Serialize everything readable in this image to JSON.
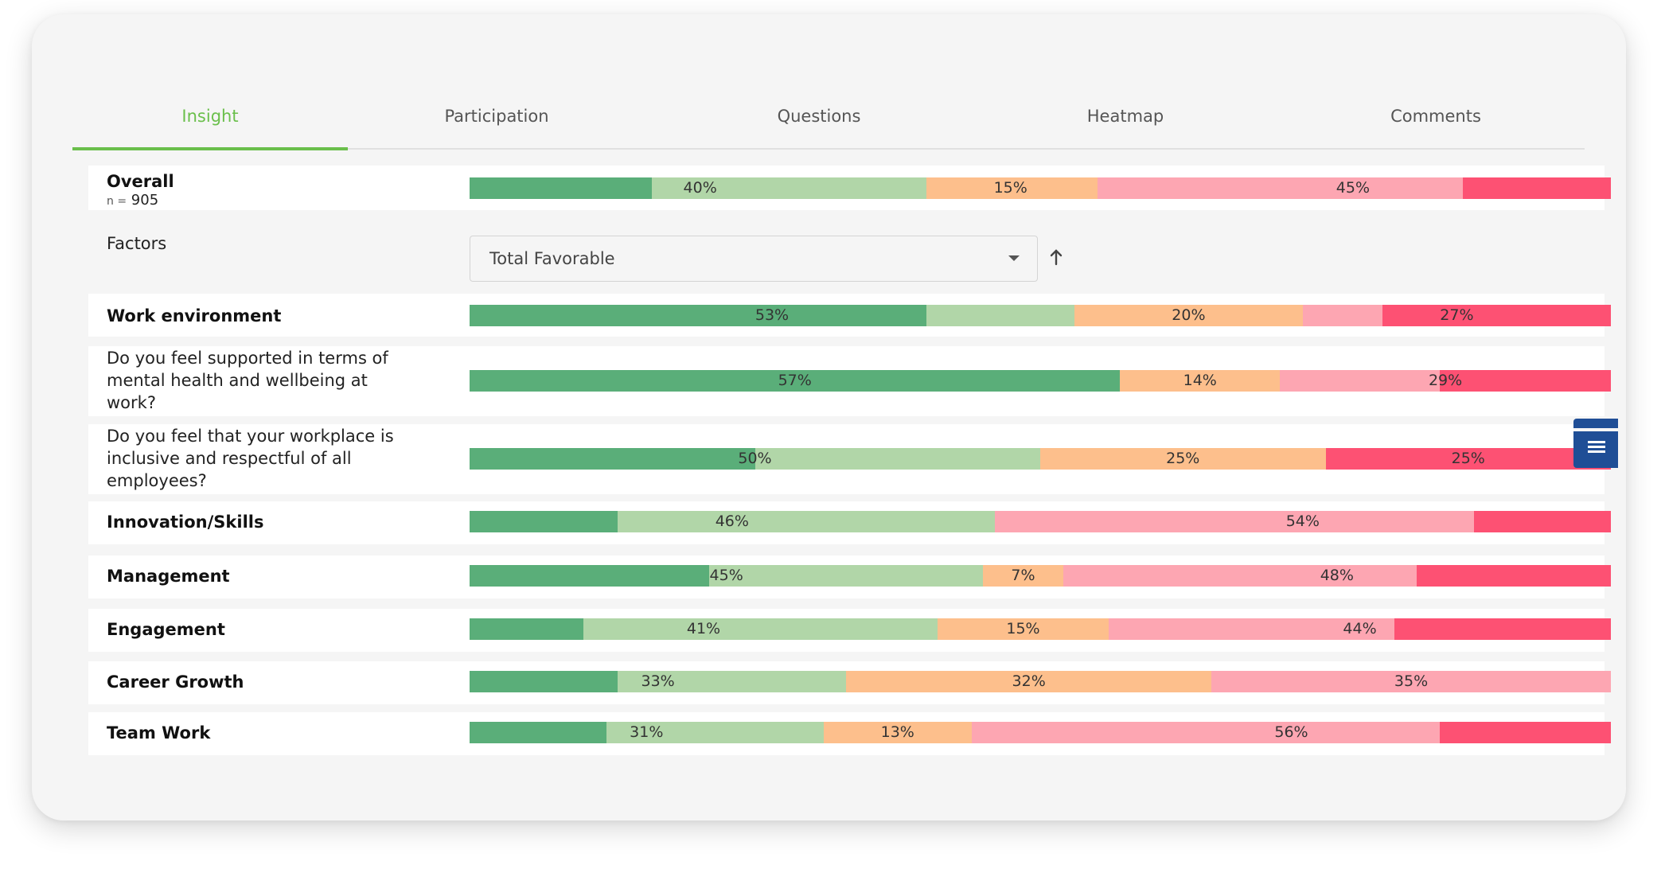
{
  "tabs": [
    {
      "label": "Insight",
      "active": true
    },
    {
      "label": "Participation",
      "active": false
    },
    {
      "label": "Questions",
      "active": false
    },
    {
      "label": "Heatmap",
      "active": false
    },
    {
      "label": "Comments",
      "active": false
    }
  ],
  "colors": {
    "strongly_favorable": "#5aae79",
    "favorable": "#b1d6a8",
    "neutral": "#fdbf8c",
    "unfavorable": "#fda6b2",
    "strongly_unfavorable": "#fd5173",
    "accent": "#6abf4b",
    "side_button": "#1f4e96"
  },
  "overall": {
    "title": "Overall",
    "n_prefix": "n =",
    "n_value": "905"
  },
  "factors": {
    "label": "Factors",
    "selected": "Total Favorable",
    "caret_icon": "chevron-down-icon",
    "sort_icon": "arrow-up-icon"
  },
  "rows": [
    {
      "id": "overall",
      "label": "Overall",
      "segments": [
        16,
        24,
        15,
        32,
        13
      ],
      "labels": [
        {
          "text": "40%",
          "at": 20.2
        },
        {
          "text": "15%",
          "at": 47.4
        },
        {
          "text": "45%",
          "at": 77.4
        }
      ]
    },
    {
      "id": "work-environment",
      "label": "Work environment",
      "bold": true,
      "segments": [
        40,
        13,
        20,
        7,
        20
      ],
      "labels": [
        {
          "text": "53%",
          "at": 26.5
        },
        {
          "text": "20%",
          "at": 63.0
        },
        {
          "text": "27%",
          "at": 86.5
        }
      ]
    },
    {
      "id": "q-mental-health",
      "label": "Do you feel supported in terms of mental health and wellbeing at work?",
      "segments": [
        57,
        0,
        14,
        14,
        15
      ],
      "labels": [
        {
          "text": "57%",
          "at": 28.5
        },
        {
          "text": "14%",
          "at": 64.0
        },
        {
          "text": "29%",
          "at": 85.5
        }
      ]
    },
    {
      "id": "q-inclusive",
      "label": "Do you feel that your workplace is inclusive and respectful of all employees?",
      "segments": [
        25,
        25,
        25,
        0,
        25
      ],
      "labels": [
        {
          "text": "50%",
          "at": 25.0
        },
        {
          "text": "25%",
          "at": 62.5
        },
        {
          "text": "25%",
          "at": 87.5
        }
      ]
    },
    {
      "id": "innovation-skills",
      "label": "Innovation/Skills",
      "bold": true,
      "segments": [
        13,
        33,
        0,
        42,
        12
      ],
      "labels": [
        {
          "text": "46%",
          "at": 23.0
        },
        {
          "text": "54%",
          "at": 73.0
        }
      ]
    },
    {
      "id": "management",
      "label": "Management",
      "bold": true,
      "segments": [
        21,
        24,
        7,
        31,
        17
      ],
      "labels": [
        {
          "text": "45%",
          "at": 22.5
        },
        {
          "text": "7%",
          "at": 48.5
        },
        {
          "text": "48%",
          "at": 76.0
        }
      ]
    },
    {
      "id": "engagement",
      "label": "Engagement",
      "bold": true,
      "segments": [
        10,
        31,
        15,
        25,
        19
      ],
      "labels": [
        {
          "text": "41%",
          "at": 20.5
        },
        {
          "text": "15%",
          "at": 48.5
        },
        {
          "text": "44%",
          "at": 78.0
        }
      ]
    },
    {
      "id": "career-growth",
      "label": "Career Growth",
      "bold": true,
      "segments": [
        13,
        20,
        32,
        35,
        0
      ],
      "labels": [
        {
          "text": "33%",
          "at": 16.5
        },
        {
          "text": "32%",
          "at": 49.0
        },
        {
          "text": "35%",
          "at": 82.5
        }
      ]
    },
    {
      "id": "team-work",
      "label": "Team Work",
      "bold": true,
      "segments": [
        12,
        19,
        13,
        41,
        15
      ],
      "labels": [
        {
          "text": "31%",
          "at": 15.5
        },
        {
          "text": "13%",
          "at": 37.5
        },
        {
          "text": "56%",
          "at": 72.0
        }
      ]
    }
  ],
  "side_button_icon": "menu-icon"
}
